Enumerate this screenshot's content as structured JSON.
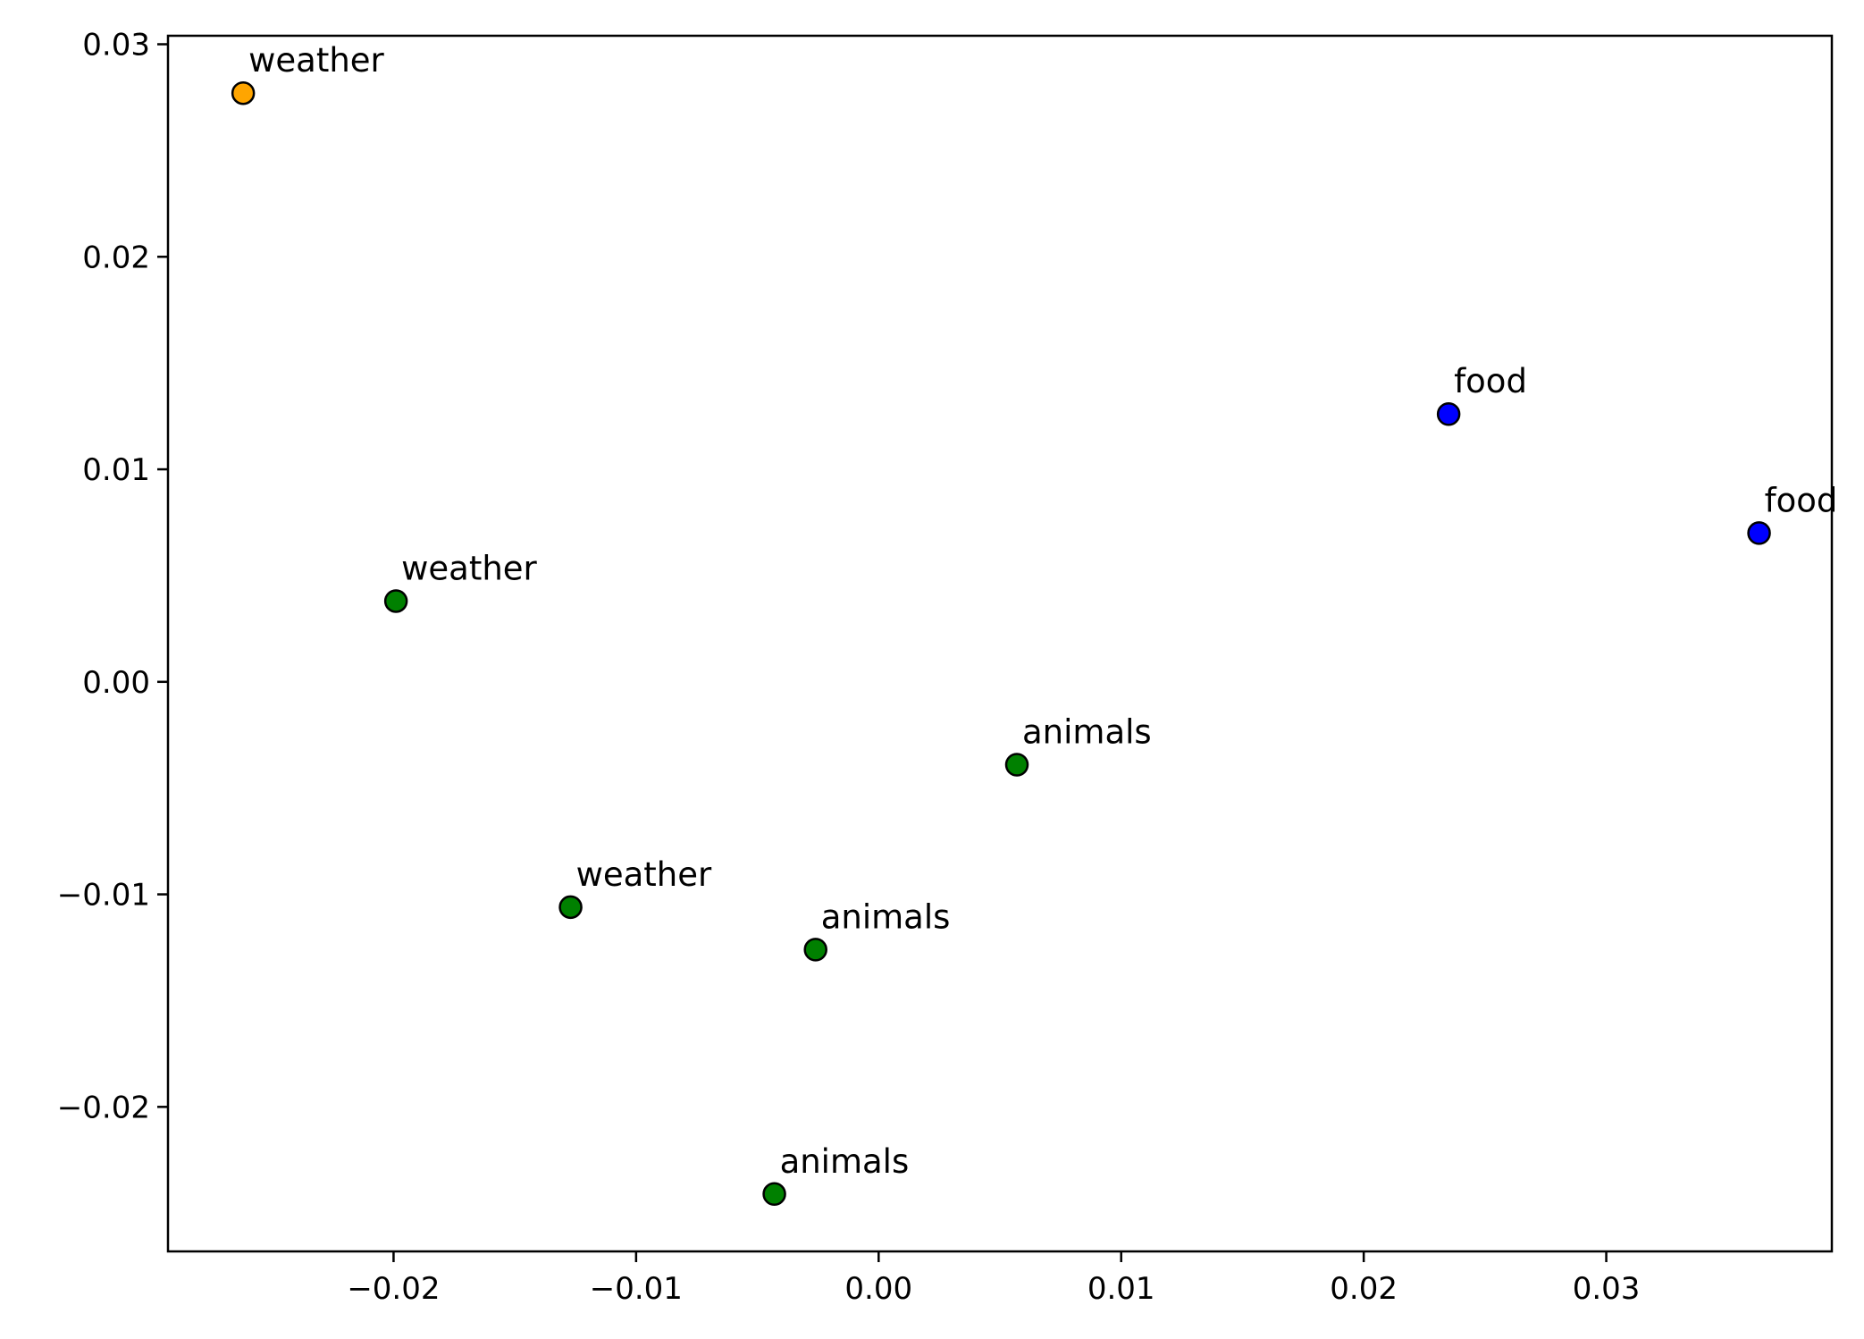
{
  "chart_data": {
    "type": "scatter",
    "title": "",
    "xlabel": "",
    "ylabel": "",
    "xlim": [
      -0.0293,
      0.0393
    ],
    "ylim": [
      -0.0268,
      0.0304
    ],
    "x_ticks": [
      -0.02,
      -0.01,
      0.0,
      0.01,
      0.02,
      0.03
    ],
    "x_tick_labels": [
      "−0.02",
      "−0.01",
      "0.00",
      "0.01",
      "0.02",
      "0.03"
    ],
    "y_ticks": [
      -0.02,
      -0.01,
      0.0,
      0.01,
      0.02,
      0.03
    ],
    "y_tick_labels": [
      "−0.02",
      "−0.01",
      "0.00",
      "0.01",
      "0.02",
      "0.03"
    ],
    "grid": false,
    "points": [
      {
        "x": -0.0262,
        "y": 0.0277,
        "label": "weather",
        "color": "#FFA500"
      },
      {
        "x": -0.0199,
        "y": 0.0038,
        "label": "weather",
        "color": "#008000"
      },
      {
        "x": -0.0127,
        "y": -0.0106,
        "label": "weather",
        "color": "#008000"
      },
      {
        "x": -0.0026,
        "y": -0.0126,
        "label": "animals",
        "color": "#008000"
      },
      {
        "x": -0.0043,
        "y": -0.0241,
        "label": "animals",
        "color": "#008000"
      },
      {
        "x": 0.0057,
        "y": -0.0039,
        "label": "animals",
        "color": "#008000"
      },
      {
        "x": 0.0235,
        "y": 0.0126,
        "label": "food",
        "color": "#0000FF"
      },
      {
        "x": 0.0363,
        "y": 0.007,
        "label": "food",
        "color": "#0000FF"
      }
    ]
  }
}
